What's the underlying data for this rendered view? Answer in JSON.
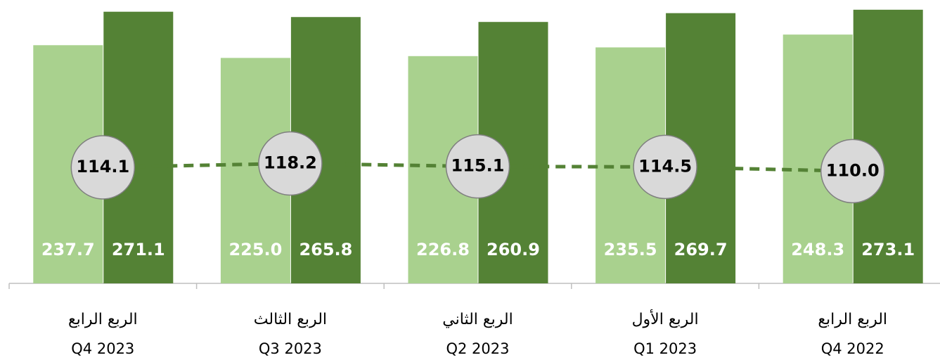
{
  "chart_data": {
    "type": "bar",
    "categories": [
      "الربع الرابع",
      "الربع الثالث",
      "الربع الثاني",
      "الربع الأول",
      "الربع الرابع"
    ],
    "periods": [
      "Q4 2023",
      "Q3 2023",
      "Q2 2023",
      "Q1 2023",
      "Q4 2022"
    ],
    "ylim": [
      0,
      280
    ],
    "y2lim": [
      -10,
      290
    ],
    "series": [
      {
        "color": "#a9d18e",
        "values": [
          237.7,
          225.0,
          226.8,
          235.5,
          248.3
        ],
        "value_labels": [
          "237.7",
          "225.0",
          "226.8",
          "235.5",
          "248.3"
        ]
      },
      {
        "color": "#548235",
        "values": [
          271.1,
          265.8,
          260.9,
          269.7,
          273.1
        ],
        "value_labels": [
          "271.1",
          "265.8",
          "260.9",
          "269.7",
          "273.1"
        ]
      },
      {
        "type": "line",
        "axis": "y2",
        "color": "#548235",
        "values": [
          114.1,
          118.2,
          115.1,
          114.5,
          110.0
        ],
        "value_labels": [
          "114.1",
          "118.2",
          "115.1",
          "114.5",
          "110.0"
        ]
      }
    ]
  }
}
